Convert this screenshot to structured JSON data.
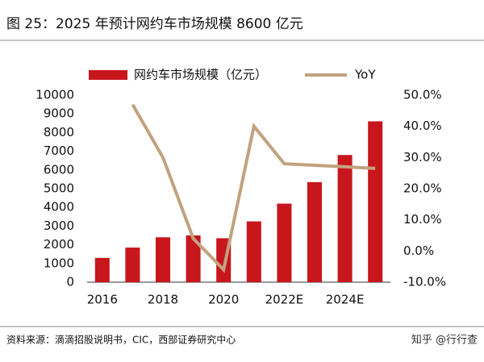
{
  "chart_data": {
    "type": "bar-line",
    "title": "图 25：2025 年预计网约车市场规模 8600 亿元",
    "source": "资料来源：滴滴招股说明书，CIC，西部证券研究中心",
    "watermark": "知乎 @行行查",
    "categories": [
      "2016",
      null,
      "2018",
      null,
      "2020",
      null,
      "2022E",
      null,
      "2024E",
      null
    ],
    "series": [
      {
        "name": "网约车市场规模（亿元）",
        "type": "bar",
        "color": "#c8161d",
        "values": [
          1300,
          1850,
          2400,
          2500,
          2350,
          3250,
          4200,
          5350,
          6800,
          8600
        ]
      },
      {
        "name": "YoY",
        "type": "line",
        "axis": "y2",
        "color": "#c2a27e",
        "values": [
          null,
          47,
          30,
          4,
          -6,
          40,
          28,
          27.5,
          27,
          26.5
        ]
      }
    ],
    "ylim": [
      0,
      10000
    ],
    "yticks": [
      0,
      1000,
      2000,
      3000,
      4000,
      5000,
      6000,
      7000,
      8000,
      9000,
      10000
    ],
    "y2lim": [
      -10,
      50
    ],
    "y2ticks": [
      {
        "value": -10,
        "label": "-10.0%"
      },
      {
        "value": 0,
        "label": "0.0%"
      },
      {
        "value": 10,
        "label": "10.0%"
      },
      {
        "value": 20,
        "label": "20.0%"
      },
      {
        "value": 30,
        "label": "30.0%"
      },
      {
        "value": 40,
        "label": "40.0%"
      },
      {
        "value": 50,
        "label": "50.0%"
      }
    ],
    "legend": "top"
  }
}
